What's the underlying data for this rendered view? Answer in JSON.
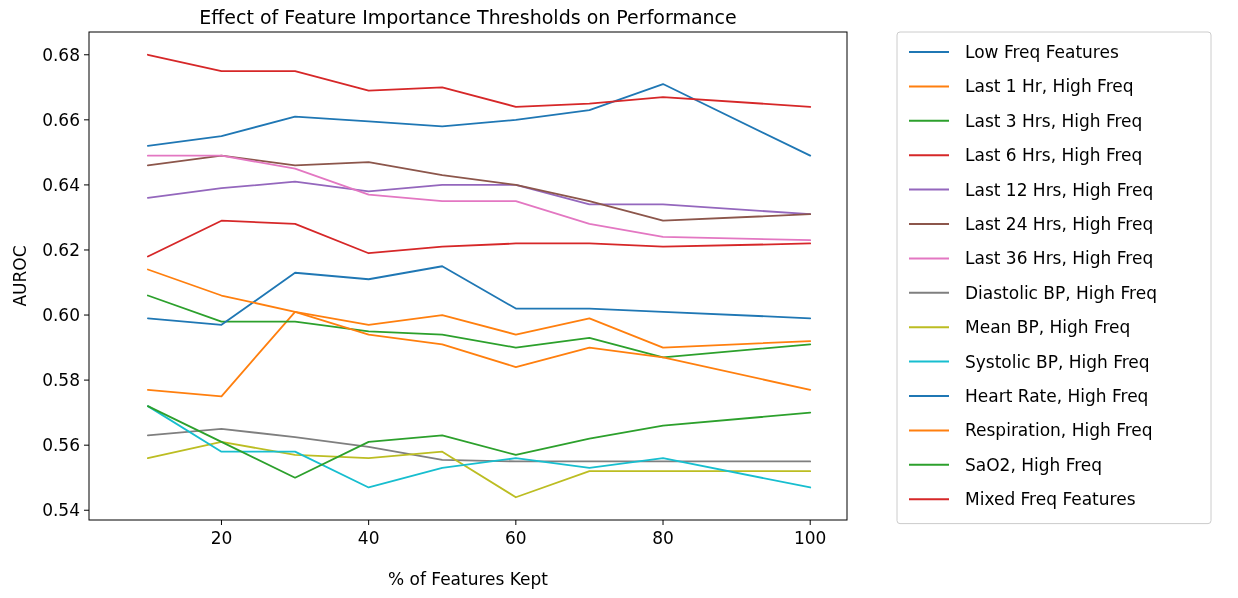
{
  "chart_data": {
    "type": "line",
    "title": "Effect of Feature Importance Thresholds on Performance",
    "xlabel": "% of Features Kept",
    "ylabel": "AUROC",
    "x": [
      10,
      20,
      30,
      40,
      50,
      60,
      70,
      80,
      100
    ],
    "xlim": [
      2,
      105
    ],
    "xticks": [
      20,
      40,
      60,
      80,
      100
    ],
    "ylim": [
      0.537,
      0.687
    ],
    "yticks": [
      0.54,
      0.56,
      0.58,
      {
        "value": 0.6,
        "label": "0.60"
      },
      0.62,
      0.64,
      0.66,
      0.68
    ],
    "legend": "right",
    "grid": false,
    "line_style": "solid",
    "marker": "none",
    "series": [
      {
        "name": "Low Freq Features",
        "color": "#1f77b4",
        "values": [
          0.652,
          0.655,
          0.661,
          0.6595,
          0.658,
          0.66,
          0.663,
          0.671,
          0.649
        ]
      },
      {
        "name": "Last 1 Hr, High Freq",
        "color": "#ff7f0e",
        "values": [
          0.577,
          0.575,
          0.601,
          0.597,
          0.6,
          0.594,
          0.599,
          0.59,
          0.592
        ]
      },
      {
        "name": "Last 3 Hrs, High Freq",
        "color": "#2ca02c",
        "values": [
          0.606,
          0.598,
          0.598,
          0.595,
          0.594,
          0.59,
          0.593,
          0.587,
          0.591
        ]
      },
      {
        "name": "Last 6 Hrs, High Freq",
        "color": "#d62728",
        "values": [
          0.618,
          0.629,
          0.628,
          0.619,
          0.621,
          0.622,
          0.622,
          0.621,
          0.622
        ]
      },
      {
        "name": "Last 12 Hrs, High Freq",
        "color": "#9467bd",
        "values": [
          0.636,
          0.639,
          0.641,
          0.638,
          0.64,
          0.64,
          0.634,
          0.634,
          0.631
        ]
      },
      {
        "name": "Last 24 Hrs, High Freq",
        "color": "#8c564b",
        "values": [
          0.646,
          0.649,
          0.646,
          0.647,
          0.643,
          0.64,
          0.635,
          0.629,
          0.631
        ]
      },
      {
        "name": "Last 36 Hrs, High Freq",
        "color": "#e377c2",
        "values": [
          0.649,
          0.649,
          0.645,
          0.637,
          0.635,
          0.635,
          0.628,
          0.624,
          0.623
        ]
      },
      {
        "name": "Diastolic BP, High Freq",
        "color": "#7f7f7f",
        "values": [
          0.563,
          0.565,
          0.5625,
          0.5595,
          0.5555,
          0.555,
          0.555,
          0.555,
          0.555
        ]
      },
      {
        "name": "Mean BP, High Freq",
        "color": "#bcbd22",
        "values": [
          0.556,
          0.561,
          0.557,
          0.556,
          0.558,
          0.544,
          0.552,
          0.552,
          0.552
        ]
      },
      {
        "name": "Systolic BP, High Freq",
        "color": "#17becf",
        "values": [
          0.572,
          0.558,
          0.558,
          0.547,
          0.553,
          0.556,
          0.553,
          0.556,
          0.547
        ]
      },
      {
        "name": "Heart Rate, High Freq",
        "color": "#1f77b4",
        "values": [
          0.599,
          0.597,
          0.613,
          0.611,
          0.615,
          0.602,
          0.602,
          0.601,
          0.599
        ]
      },
      {
        "name": "Respiration, High Freq",
        "color": "#ff7f0e",
        "values": [
          0.614,
          0.606,
          0.601,
          0.594,
          0.591,
          0.584,
          0.59,
          0.587,
          0.577
        ]
      },
      {
        "name": "SaO2, High Freq",
        "color": "#2ca02c",
        "values": [
          0.572,
          0.561,
          0.55,
          0.561,
          0.563,
          0.557,
          0.562,
          0.566,
          0.57
        ]
      },
      {
        "name": "Mixed Freq Features",
        "color": "#d62728",
        "values": [
          0.68,
          0.675,
          0.675,
          0.669,
          0.67,
          0.664,
          0.665,
          0.667,
          0.664
        ]
      }
    ]
  }
}
